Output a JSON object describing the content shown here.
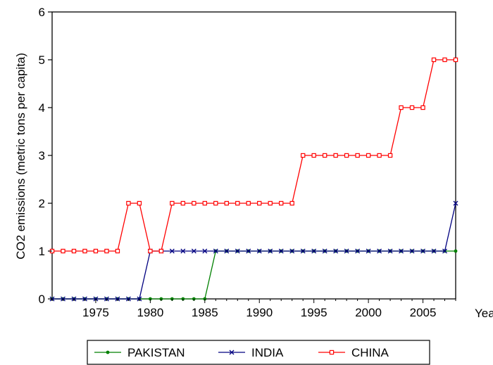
{
  "chart_data": {
    "type": "line",
    "xlabel": "Year",
    "ylabel": "CO2 emissions (metric tons per capita)",
    "xlim": [
      1971,
      2008
    ],
    "ylim": [
      0,
      6
    ],
    "x_ticks": [
      1975,
      1980,
      1985,
      1990,
      1995,
      2000,
      2005
    ],
    "y_ticks": [
      0,
      1,
      2,
      3,
      4,
      5,
      6
    ],
    "grid": false,
    "legend_position": "bottom",
    "x": [
      1971,
      1972,
      1973,
      1974,
      1975,
      1976,
      1977,
      1978,
      1979,
      1980,
      1981,
      1982,
      1983,
      1984,
      1985,
      1986,
      1987,
      1988,
      1989,
      1990,
      1991,
      1992,
      1993,
      1994,
      1995,
      1996,
      1997,
      1998,
      1999,
      2000,
      2001,
      2002,
      2003,
      2004,
      2005,
      2006,
      2007,
      2008
    ],
    "series": [
      {
        "name": "PAKISTAN",
        "color": "#008000",
        "marker": "dot",
        "values": [
          0,
          0,
          0,
          0,
          0,
          0,
          0,
          0,
          0,
          0,
          0,
          0,
          0,
          0,
          0,
          1,
          1,
          1,
          1,
          1,
          1,
          1,
          1,
          1,
          1,
          1,
          1,
          1,
          1,
          1,
          1,
          1,
          1,
          1,
          1,
          1,
          1,
          1
        ]
      },
      {
        "name": "INDIA",
        "color": "#000080",
        "marker": "x",
        "values": [
          0,
          0,
          0,
          0,
          0,
          0,
          0,
          0,
          0,
          1,
          1,
          1,
          1,
          1,
          1,
          1,
          1,
          1,
          1,
          1,
          1,
          1,
          1,
          1,
          1,
          1,
          1,
          1,
          1,
          1,
          1,
          1,
          1,
          1,
          1,
          1,
          1,
          2
        ]
      },
      {
        "name": "CHINA",
        "color": "#ff0000",
        "marker": "square",
        "values": [
          1,
          1,
          1,
          1,
          1,
          1,
          1,
          2,
          2,
          1,
          1,
          2,
          2,
          2,
          2,
          2,
          2,
          2,
          2,
          2,
          2,
          2,
          2,
          3,
          3,
          3,
          3,
          3,
          3,
          3,
          3,
          3,
          4,
          4,
          4,
          5,
          5,
          5
        ]
      }
    ]
  }
}
